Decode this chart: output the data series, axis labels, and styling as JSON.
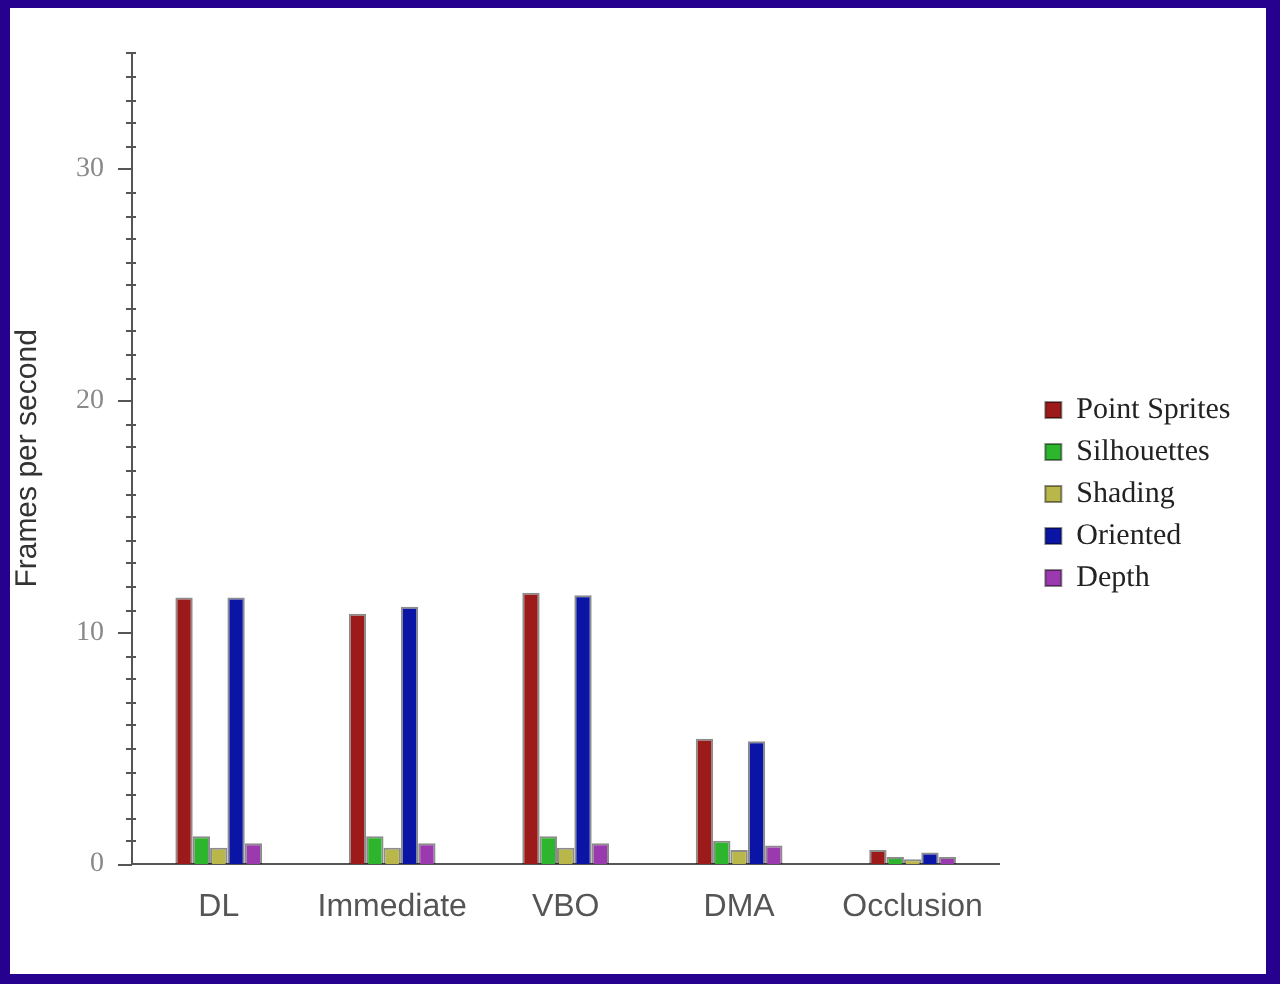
{
  "chart_data": {
    "type": "bar",
    "ylabel": "Frames per second",
    "categories": [
      "DL",
      "Immediate",
      "VBO",
      "DMA",
      "Occlusion"
    ],
    "series": [
      {
        "name": "Point Sprites",
        "color": "#9c1a1a",
        "values": [
          11.5,
          10.8,
          11.7,
          5.4,
          0.6
        ]
      },
      {
        "name": "Silhouettes",
        "color": "#2db52d",
        "values": [
          1.2,
          1.2,
          1.2,
          1.0,
          0.3
        ]
      },
      {
        "name": "Shading",
        "color": "#b9b74a",
        "values": [
          0.7,
          0.7,
          0.7,
          0.6,
          0.2
        ]
      },
      {
        "name": "Oriented",
        "color": "#0a14a5",
        "values": [
          11.5,
          11.1,
          11.6,
          5.3,
          0.5
        ]
      },
      {
        "name": "Depth",
        "color": "#9b3aae",
        "values": [
          0.9,
          0.9,
          0.9,
          0.8,
          0.3
        ]
      }
    ],
    "ylim": [
      0,
      35
    ],
    "yticks": [
      0,
      {
        "value": 1,
        "label": null
      },
      {
        "value": 2,
        "label": null
      },
      {
        "value": 3,
        "label": null
      },
      {
        "value": 4,
        "label": null
      },
      {
        "value": 5,
        "label": null
      },
      {
        "value": 6,
        "label": null
      },
      {
        "value": 7,
        "label": null
      },
      {
        "value": 8,
        "label": null
      },
      {
        "value": 9,
        "label": null
      },
      10,
      {
        "value": 11,
        "label": null
      },
      {
        "value": 12,
        "label": null
      },
      {
        "value": 13,
        "label": null
      },
      {
        "value": 14,
        "label": null
      },
      {
        "value": 15,
        "label": null
      },
      {
        "value": 16,
        "label": null
      },
      {
        "value": 17,
        "label": null
      },
      {
        "value": 18,
        "label": null
      },
      {
        "value": 19,
        "label": null
      },
      20,
      {
        "value": 21,
        "label": null
      },
      {
        "value": 22,
        "label": null
      },
      {
        "value": 23,
        "label": null
      },
      {
        "value": 24,
        "label": null
      },
      {
        "value": 25,
        "label": null
      },
      {
        "value": 26,
        "label": null
      },
      {
        "value": 27,
        "label": null
      },
      {
        "value": 28,
        "label": null
      },
      {
        "value": 29,
        "label": null
      },
      30,
      {
        "value": 31,
        "label": null
      },
      {
        "value": 32,
        "label": null
      },
      {
        "value": 33,
        "label": null
      },
      {
        "value": 34,
        "label": null
      },
      {
        "value": 35,
        "label": null
      }
    ],
    "legend": "right"
  }
}
